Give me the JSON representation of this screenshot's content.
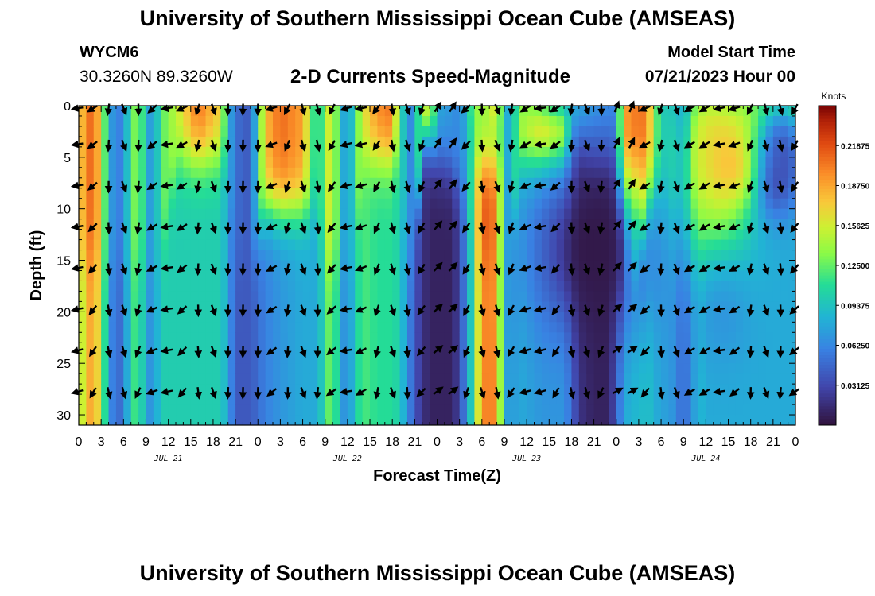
{
  "header": {
    "title": "University of Southern Mississippi Ocean Cube (AMSEAS)",
    "station_id": "WYCM6",
    "coordinates": "30.3260N  89.3260W",
    "plot_title": "2-D Currents Speed-Magnitude",
    "model_start_label": "Model Start Time",
    "model_start_value": "07/21/2023 Hour 00"
  },
  "footer": {
    "title": "University of Southern Mississippi Ocean Cube (AMSEAS)"
  },
  "chart_data": {
    "type": "heatmap",
    "title": "2-D Currents Speed-Magnitude",
    "xlabel": "Forecast Time(Z)",
    "ylabel": "Depth (ft)",
    "x_unit": "hours since 07/21/2023 00Z",
    "xlim": [
      0,
      96
    ],
    "ylim": [
      0,
      31
    ],
    "y_inverted": true,
    "x_ticks": [
      0,
      3,
      6,
      9,
      12,
      15,
      18,
      21,
      24,
      27,
      30,
      33,
      36,
      39,
      42,
      45,
      48,
      51,
      54,
      57,
      60,
      63,
      66,
      69,
      72,
      75,
      78,
      81,
      84,
      87,
      90,
      93,
      96
    ],
    "x_tick_labels": [
      "0",
      "3",
      "6",
      "9",
      "12",
      "15",
      "18",
      "21",
      "0",
      "3",
      "6",
      "9",
      "12",
      "15",
      "18",
      "21",
      "0",
      "3",
      "6",
      "9",
      "12",
      "15",
      "18",
      "21",
      "0",
      "3",
      "6",
      "9",
      "12",
      "15",
      "18",
      "21",
      "0"
    ],
    "date_labels": [
      {
        "text": "JUL 21",
        "x": 12
      },
      {
        "text": "JUL 22",
        "x": 36
      },
      {
        "text": "JUL 23",
        "x": 60
      },
      {
        "text": "JUL 24",
        "x": 84
      }
    ],
    "y_ticks": [
      0,
      5,
      10,
      15,
      20,
      25,
      30
    ],
    "y_tick_labels": [
      "0",
      "5",
      "10",
      "15",
      "20",
      "25",
      "30"
    ],
    "colorbar": {
      "label": "Knots",
      "range": [
        0.0,
        0.25
      ],
      "ticks": [
        0.03125,
        0.0625,
        0.09375,
        0.125,
        0.15625,
        0.1875,
        0.21875
      ],
      "tick_labels": [
        "0.03125",
        "0.06250",
        "0.09375",
        "0.12500",
        "0.15625",
        "0.18750",
        "0.21875"
      ]
    },
    "vector_depths_ft": [
      0,
      3.5,
      7.5,
      11.5,
      15.5,
      19.5,
      23.5,
      27.5
    ],
    "speed_columns": [
      {
        "t": 0,
        "top": 0.17,
        "bottom": 0.14,
        "bend": 15
      },
      {
        "t": 2,
        "top": 0.22,
        "bottom": 0.2,
        "bend": 15
      },
      {
        "t": 4,
        "top": 0.09,
        "bottom": 0.08,
        "bend": 15
      },
      {
        "t": 5,
        "top": 0.05,
        "bottom": 0.04,
        "bend": 15
      },
      {
        "t": 6,
        "top": 0.07,
        "bottom": 0.06,
        "bend": 15
      },
      {
        "t": 7,
        "top": 0.11,
        "bottom": 0.1,
        "bend": 15
      },
      {
        "t": 8,
        "top": 0.15,
        "bottom": 0.13,
        "bend": 15
      },
      {
        "t": 9,
        "top": 0.08,
        "bottom": 0.07,
        "bend": 15
      },
      {
        "t": 10,
        "top": 0.07,
        "bottom": 0.07,
        "bend": 15
      },
      {
        "t": 11,
        "top": 0.12,
        "bottom": 0.1,
        "bend": 15
      },
      {
        "t": 13,
        "top": 0.15,
        "bottom": 0.1,
        "bend": 5
      },
      {
        "t": 16,
        "top": 0.21,
        "bottom": 0.1,
        "bend": 5
      },
      {
        "t": 19,
        "top": 0.17,
        "bottom": 0.1,
        "bend": 5
      },
      {
        "t": 20,
        "top": 0.09,
        "bottom": 0.08,
        "bend": 5
      },
      {
        "t": 21,
        "top": 0.05,
        "bottom": 0.04,
        "bend": 15
      },
      {
        "t": 23,
        "top": 0.04,
        "bottom": 0.04,
        "bend": 15
      },
      {
        "t": 25,
        "top": 0.18,
        "bottom": 0.06,
        "bend": 10
      },
      {
        "t": 27,
        "top": 0.21,
        "bottom": 0.07,
        "bend": 10
      },
      {
        "t": 30,
        "top": 0.19,
        "bottom": 0.08,
        "bend": 10
      },
      {
        "t": 32,
        "top": 0.09,
        "bottom": 0.08,
        "bend": 10
      },
      {
        "t": 33,
        "top": 0.14,
        "bottom": 0.11,
        "bend": 15
      },
      {
        "t": 34,
        "top": 0.17,
        "bottom": 0.14,
        "bend": 15
      },
      {
        "t": 35,
        "top": 0.09,
        "bottom": 0.08,
        "bend": 15
      },
      {
        "t": 36,
        "top": 0.07,
        "bottom": 0.06,
        "bend": 15
      },
      {
        "t": 37,
        "top": 0.11,
        "bottom": 0.1,
        "bend": 15
      },
      {
        "t": 38,
        "top": 0.16,
        "bottom": 0.12,
        "bend": 5
      },
      {
        "t": 40,
        "top": 0.2,
        "bottom": 0.11,
        "bend": 5
      },
      {
        "t": 42,
        "top": 0.21,
        "bottom": 0.11,
        "bend": 5
      },
      {
        "t": 43,
        "top": 0.11,
        "bottom": 0.1,
        "bend": 5
      },
      {
        "t": 44,
        "top": 0.08,
        "bottom": 0.07,
        "bend": 15
      },
      {
        "t": 45,
        "top": 0.05,
        "bottom": 0.04,
        "bend": 15
      },
      {
        "t": 46,
        "top": 0.17,
        "bottom": 0.02,
        "bend": 3
      },
      {
        "t": 47,
        "top": 0.18,
        "bottom": 0.01,
        "bend": 3
      },
      {
        "t": 48,
        "top": 0.08,
        "bottom": 0.01,
        "bend": 5
      },
      {
        "t": 50,
        "top": 0.07,
        "bottom": 0.01,
        "bend": 6
      },
      {
        "t": 51,
        "top": 0.06,
        "bottom": 0.03,
        "bend": 8
      },
      {
        "t": 52,
        "top": 0.08,
        "bottom": 0.07,
        "bend": 8
      },
      {
        "t": 53,
        "top": 0.14,
        "bottom": 0.12,
        "bend": 15
      },
      {
        "t": 54,
        "top": 0.22,
        "bottom": 0.2,
        "bend": 15
      },
      {
        "t": 56,
        "top": 0.21,
        "bottom": 0.2,
        "bend": 15
      },
      {
        "t": 57,
        "top": 0.09,
        "bottom": 0.08,
        "bend": 15
      },
      {
        "t": 58,
        "top": 0.07,
        "bottom": 0.07,
        "bend": 15
      },
      {
        "t": 59,
        "top": 0.16,
        "bottom": 0.08,
        "bend": 5
      },
      {
        "t": 62,
        "top": 0.2,
        "bottom": 0.07,
        "bend": 5
      },
      {
        "t": 65,
        "top": 0.18,
        "bottom": 0.07,
        "bend": 5
      },
      {
        "t": 66,
        "top": 0.08,
        "bottom": 0.05,
        "bend": 5
      },
      {
        "t": 67,
        "top": 0.07,
        "bottom": 0.02,
        "bend": 4
      },
      {
        "t": 69,
        "top": 0.06,
        "bottom": 0.01,
        "bend": 6
      },
      {
        "t": 71,
        "top": 0.06,
        "bottom": 0.01,
        "bend": 6
      },
      {
        "t": 72,
        "top": 0.06,
        "bottom": 0.04,
        "bend": 6
      },
      {
        "t": 73,
        "top": 0.21,
        "bottom": 0.08,
        "bend": 16
      },
      {
        "t": 75,
        "top": 0.22,
        "bottom": 0.09,
        "bend": 16
      },
      {
        "t": 76,
        "top": 0.21,
        "bottom": 0.09,
        "bend": 10
      },
      {
        "t": 77,
        "top": 0.15,
        "bottom": 0.09,
        "bend": 8
      },
      {
        "t": 78,
        "top": 0.09,
        "bottom": 0.07,
        "bend": 8
      },
      {
        "t": 79,
        "top": 0.09,
        "bottom": 0.08,
        "bend": 8
      },
      {
        "t": 80,
        "top": 0.07,
        "bottom": 0.06,
        "bend": 10
      },
      {
        "t": 81,
        "top": 0.04,
        "bottom": 0.05,
        "bend": 10
      },
      {
        "t": 82,
        "top": 0.06,
        "bottom": 0.06,
        "bend": 10
      },
      {
        "t": 83,
        "top": 0.13,
        "bottom": 0.09,
        "bend": 2
      },
      {
        "t": 84,
        "top": 0.15,
        "bottom": 0.08,
        "bend": 2
      }
    ],
    "overlays": [
      {
        "t": 69,
        "d": 14,
        "st": 7,
        "sd": 8,
        "speed": 0.004,
        "w": 1
      },
      {
        "t": 65,
        "d": 0,
        "st": 6,
        "sd": 2,
        "speed": 0.08,
        "w": 0.7
      },
      {
        "t": 87,
        "d": 0,
        "st": 6,
        "sd": 2,
        "speed": 0.07,
        "w": 0.6
      },
      {
        "t": 91,
        "d": 1,
        "st": 4,
        "sd": 3,
        "speed": 0.14,
        "w": 0.5
      },
      {
        "t": 93,
        "d": 7,
        "st": 3,
        "sd": 4,
        "speed": 0.02,
        "w": 0.9
      },
      {
        "t": 94,
        "d": 4,
        "st": 3,
        "sd": 4,
        "speed": 0.03,
        "w": 0.8
      },
      {
        "t": 88,
        "d": 6,
        "st": 3,
        "sd": 4,
        "speed": 0.19,
        "w": 0.6
      },
      {
        "t": 85,
        "d": 6,
        "st": 5,
        "sd": 10,
        "speed": 0.21,
        "w": 0.6
      },
      {
        "t": 86,
        "d": 19,
        "st": 4,
        "sd": 6,
        "speed": 0.04,
        "w": 0.4
      },
      {
        "t": 54,
        "d": 0,
        "st": 1.5,
        "sd": 2.5,
        "speed": 0.14,
        "w": 0.7
      },
      {
        "t": 55,
        "d": 3,
        "st": 3,
        "sd": 4,
        "speed": 0.09,
        "w": 0.5
      }
    ]
  }
}
